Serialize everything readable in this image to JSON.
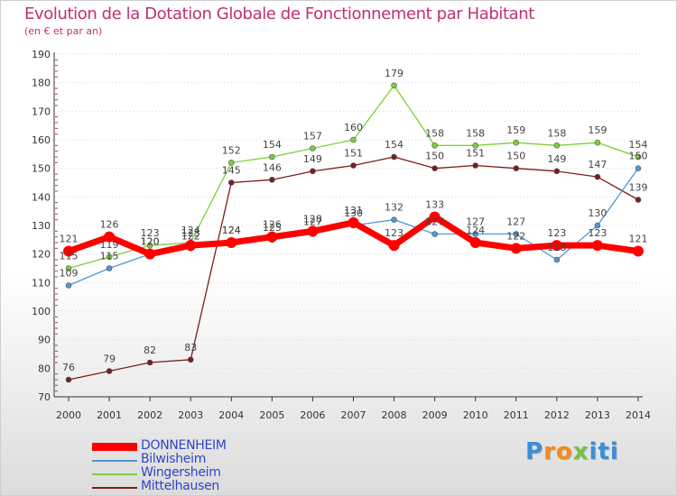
{
  "title": "Evolution de la Dotation Globale de Fonctionnement par Habitant",
  "subtitle": "(en € et par an)",
  "logo": {
    "letters": [
      "P",
      "r",
      "o",
      "x",
      "i",
      "t",
      "i"
    ],
    "letter_colors": [
      "#3b8fd6",
      "#f28c1d",
      "#f28c1d",
      "#7ac143",
      "#3b8fd6",
      "#3b8fd6",
      "#3b8fd6"
    ]
  },
  "colors": {
    "title": "#c0306f",
    "axis": "#333333",
    "grid": "#d8d8d8",
    "tick_marks": "#c0306f",
    "legend_text": "#2f46c4"
  },
  "chart_data": {
    "type": "line",
    "title": "Evolution de la Dotation Globale de Fonctionnement par Habitant",
    "subtitle": "(en € et par an)",
    "xlabel": "",
    "ylabel": "",
    "ylim": [
      70,
      190
    ],
    "yticks": [
      70,
      80,
      90,
      100,
      110,
      120,
      130,
      140,
      150,
      160,
      170,
      180,
      190
    ],
    "grid": "horizontal-dotted",
    "legend_position": "bottom-left",
    "x": [
      "2000",
      "2001",
      "2002",
      "2003",
      "2004",
      "2005",
      "2006",
      "2007",
      "2008",
      "2009",
      "2010",
      "2011",
      "2012",
      "2013",
      "2014"
    ],
    "series": [
      {
        "name": "Mittelhausen",
        "color": "#7a1e1e",
        "values": [
          76,
          79,
          82,
          83,
          145,
          146,
          149,
          151,
          154,
          150,
          151,
          150,
          149,
          147,
          139
        ],
        "labels": [
          "76",
          "79",
          "82",
          "83",
          "145",
          "146",
          "149",
          "151",
          "154",
          "150",
          "151",
          "150",
          "149",
          "147",
          "139"
        ]
      },
      {
        "name": "Wingersheim",
        "color": "#7ccf3a",
        "values": [
          115,
          119,
          123,
          124,
          152,
          154,
          157,
          160,
          179,
          158,
          158,
          159,
          158,
          159,
          154
        ],
        "labels": [
          "115",
          "119",
          "123",
          "124",
          "152",
          "154",
          "157",
          "160",
          "179",
          "158",
          "158",
          "159",
          "158",
          "159",
          "154"
        ]
      },
      {
        "name": "Bilwisheim",
        "color": "#4f97d4",
        "values": [
          109,
          115,
          120,
          122,
          124,
          125,
          127,
          130,
          132,
          127,
          127,
          127,
          118,
          130,
          150
        ],
        "labels": [
          "109",
          "115",
          "120",
          "122",
          "124",
          "125",
          "127",
          "130",
          "132",
          "127",
          "127",
          "127",
          "118",
          "130",
          "150"
        ]
      },
      {
        "name": "DONNENHEIM",
        "color": "#ff0000",
        "values": [
          121,
          126,
          120,
          123,
          124,
          126,
          128,
          131,
          123,
          133,
          124,
          122,
          123,
          123,
          121
        ],
        "labels": [
          "121",
          "126",
          "120",
          "123",
          "124",
          "126",
          "128",
          "131",
          "123",
          "133",
          "124",
          "122",
          "123",
          "123",
          "121"
        ]
      }
    ],
    "legend": [
      "DONNENHEIM",
      "Bilwisheim",
      "Wingersheim",
      "Mittelhausen"
    ]
  }
}
